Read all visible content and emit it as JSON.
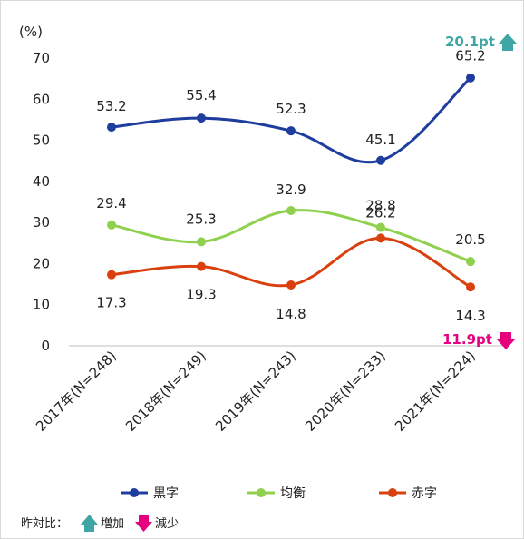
{
  "chart_data": {
    "type": "line",
    "ylabel": "(%)",
    "ylim": [
      0,
      70
    ],
    "yticks": [
      "70",
      "60",
      "50",
      "40",
      "30",
      "20",
      "10",
      "0"
    ],
    "categories": [
      "2017年(N=248)",
      "2018年(N=249)",
      "2019年(N=243)",
      "2020年(N=233)",
      "2021年(N=224)"
    ],
    "series": [
      {
        "name": "黒字",
        "color": "#1f3d9e",
        "values": [
          53.2,
          55.4,
          52.3,
          45.1,
          65.2
        ],
        "labels": [
          "53.2",
          "55.4",
          "52.3",
          "45.1",
          "65.2"
        ]
      },
      {
        "name": "均衡",
        "color": "#8fd14f",
        "values": [
          29.4,
          25.3,
          32.9,
          28.8,
          20.5
        ],
        "labels": [
          "29.4",
          "25.3",
          "32.9",
          "28.8",
          "20.5"
        ]
      },
      {
        "name": "赤字",
        "color": "#d9400e",
        "values": [
          17.3,
          19.3,
          14.8,
          26.2,
          14.3
        ],
        "labels": [
          "17.3",
          "19.3",
          "14.8",
          "26.2",
          "14.3"
        ]
      }
    ],
    "grid": false,
    "legend": "bottom",
    "changes": {
      "increase": {
        "text": "20.1pt",
        "color": "#3fa6a6"
      },
      "decrease": {
        "text": "11.9pt",
        "color": "#e6007e"
      }
    },
    "note": {
      "prefix": "昨対比：",
      "increase_label": "増加",
      "decrease_label": "減少"
    }
  }
}
